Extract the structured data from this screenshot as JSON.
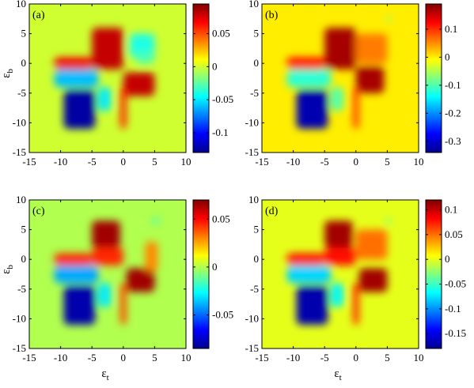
{
  "colors": {
    "jet": [
      "#00008f",
      "#0000ff",
      "#0080ff",
      "#00ffff",
      "#80ff80",
      "#ffff00",
      "#ff8000",
      "#ff0000",
      "#800000"
    ],
    "background": "#f2f200",
    "axis": "#000000"
  },
  "chart_data": [
    {
      "type": "heatmap",
      "panel_label": "(a)",
      "xlabel": "",
      "ylabel": "εb",
      "xlim": [
        -15,
        10
      ],
      "ylim": [
        -15,
        10
      ],
      "xticks": [
        "-15",
        "-10",
        "-5",
        "0",
        "5",
        "10"
      ],
      "yticks": [
        "10",
        "5",
        "0",
        "-5",
        "-10",
        "-15"
      ],
      "clim": [
        -0.13,
        0.095
      ],
      "colorbar_ticks": [
        "0.05",
        "0",
        "-0.05",
        "-0.1"
      ],
      "colorbar_tick_values": [
        0.05,
        0,
        -0.05,
        -0.1
      ],
      "features": [
        {
          "shape": "rect",
          "x": [
            -9.5,
            -4.5
          ],
          "y": [
            -11,
            -4.5
          ],
          "value": -0.125
        },
        {
          "shape": "rect",
          "x": [
            -11,
            -4
          ],
          "y": [
            -4,
            -1
          ],
          "value": -0.06
        },
        {
          "shape": "rect",
          "x": [
            -4,
            -2
          ],
          "y": [
            -8,
            -4
          ],
          "value": -0.05
        },
        {
          "shape": "rect",
          "x": [
            -5,
            0
          ],
          "y": [
            -1,
            6
          ],
          "value": 0.08
        },
        {
          "shape": "rect",
          "x": [
            -11,
            -5
          ],
          "y": [
            -1,
            1
          ],
          "value": 0.07
        },
        {
          "shape": "rect",
          "x": [
            0,
            5
          ],
          "y": [
            -5.5,
            -1.5
          ],
          "value": 0.08
        },
        {
          "shape": "rect",
          "x": [
            -0.5,
            0.5
          ],
          "y": [
            -11,
            -4
          ],
          "value": 0.06
        },
        {
          "shape": "rect",
          "x": [
            1,
            5
          ],
          "y": [
            1,
            5
          ],
          "value": -0.04
        },
        {
          "shape": "rect",
          "x": [
            2,
            5
          ],
          "y": [
            0,
            2
          ],
          "value": -0.03
        }
      ]
    },
    {
      "type": "heatmap",
      "panel_label": "(b)",
      "xlabel": "",
      "ylabel": "",
      "xlim": [
        -15,
        10
      ],
      "ylim": [
        -15,
        10
      ],
      "xticks": [
        "-15",
        "-10",
        "-5",
        "0",
        "5",
        "10"
      ],
      "yticks": [
        "10",
        "5",
        "0",
        "-5",
        "-10",
        "-15"
      ],
      "clim": [
        -0.34,
        0.19
      ],
      "colorbar_ticks": [
        "0.1",
        "0",
        "-0.1",
        "-0.2",
        "-0.3"
      ],
      "colorbar_tick_values": [
        0.1,
        0,
        -0.1,
        -0.2,
        -0.3
      ],
      "features": [
        {
          "shape": "rect",
          "x": [
            -9.5,
            -4.5
          ],
          "y": [
            -11,
            -4.5
          ],
          "value": -0.32
        },
        {
          "shape": "rect",
          "x": [
            -11,
            -4
          ],
          "y": [
            -4,
            -1
          ],
          "value": -0.12
        },
        {
          "shape": "rect",
          "x": [
            -4,
            -2
          ],
          "y": [
            -8,
            -4
          ],
          "value": -0.1
        },
        {
          "shape": "rect",
          "x": [
            -5,
            0
          ],
          "y": [
            -1,
            6
          ],
          "value": 0.17
        },
        {
          "shape": "rect",
          "x": [
            -11,
            -5
          ],
          "y": [
            -1,
            1
          ],
          "value": 0.12
        },
        {
          "shape": "rect",
          "x": [
            0,
            4.5
          ],
          "y": [
            -5,
            -0.5
          ],
          "value": 0.17
        },
        {
          "shape": "rect",
          "x": [
            -0.5,
            0.5
          ],
          "y": [
            -11,
            -4
          ],
          "value": 0.09
        },
        {
          "shape": "rect",
          "x": [
            0,
            5
          ],
          "y": [
            0,
            5
          ],
          "value": 0.06
        },
        {
          "shape": "rect",
          "x": [
            4.7,
            5.7
          ],
          "y": [
            7,
            8
          ],
          "value": -0.05
        }
      ]
    },
    {
      "type": "heatmap",
      "panel_label": "(c)",
      "xlabel": "εt",
      "ylabel": "εb",
      "xlim": [
        -15,
        10
      ],
      "ylim": [
        -15,
        10
      ],
      "xticks": [
        "-15",
        "-10",
        "-5",
        "0",
        "5",
        "10"
      ],
      "yticks": [
        "10",
        "5",
        "0",
        "-5",
        "-10",
        "-15"
      ],
      "clim": [
        -0.085,
        0.07
      ],
      "colorbar_ticks": [
        "0.05",
        "0",
        "-0.05"
      ],
      "colorbar_tick_values": [
        0.05,
        0,
        -0.05
      ],
      "features": [
        {
          "shape": "rect",
          "x": [
            -9.5,
            -4.5
          ],
          "y": [
            -11,
            -4.5
          ],
          "value": -0.08
        },
        {
          "shape": "rect",
          "x": [
            -11,
            -4
          ],
          "y": [
            -4,
            -1
          ],
          "value": -0.04
        },
        {
          "shape": "rect",
          "x": [
            -4,
            -2
          ],
          "y": [
            -8,
            -4
          ],
          "value": -0.03
        },
        {
          "shape": "rect",
          "x": [
            -5,
            -0.5
          ],
          "y": [
            2,
            6.5
          ],
          "value": 0.065
        },
        {
          "shape": "rect",
          "x": [
            -5,
            0
          ],
          "y": [
            -1,
            2
          ],
          "value": 0.045
        },
        {
          "shape": "rect",
          "x": [
            -11,
            -5
          ],
          "y": [
            -1,
            1
          ],
          "value": 0.045
        },
        {
          "shape": "rect",
          "x": [
            0.5,
            5
          ],
          "y": [
            -5.5,
            -1.5
          ],
          "value": 0.065
        },
        {
          "shape": "rect",
          "x": [
            -0.5,
            0.5
          ],
          "y": [
            -11,
            -4
          ],
          "value": 0.04
        },
        {
          "shape": "rect",
          "x": [
            3.5,
            5.5
          ],
          "y": [
            -2,
            3
          ],
          "value": 0.03
        },
        {
          "shape": "rect",
          "x": [
            4.7,
            5.7
          ],
          "y": [
            6,
            7
          ],
          "value": -0.02
        }
      ]
    },
    {
      "type": "heatmap",
      "panel_label": "(d)",
      "xlabel": "εt",
      "ylabel": "",
      "xlim": [
        -15,
        10
      ],
      "ylim": [
        -15,
        10
      ],
      "xticks": [
        "-15",
        "-10",
        "-5",
        "0",
        "5",
        "10"
      ],
      "yticks": [
        "10",
        "5",
        "0",
        "-5",
        "-10",
        "-15"
      ],
      "clim": [
        -0.18,
        0.12
      ],
      "colorbar_ticks": [
        "0.1",
        "0.05",
        "0",
        "-0.05",
        "-0.1",
        "-0.15"
      ],
      "colorbar_tick_values": [
        0.1,
        0.05,
        0,
        -0.05,
        -0.1,
        -0.15
      ],
      "features": [
        {
          "shape": "rect",
          "x": [
            -9.5,
            -4.5
          ],
          "y": [
            -11,
            -4.5
          ],
          "value": -0.17
        },
        {
          "shape": "rect",
          "x": [
            -11,
            -4
          ],
          "y": [
            -4,
            -1
          ],
          "value": -0.08
        },
        {
          "shape": "rect",
          "x": [
            -4,
            -2
          ],
          "y": [
            -8,
            -4
          ],
          "value": -0.07
        },
        {
          "shape": "rect",
          "x": [
            -5,
            -0.5
          ],
          "y": [
            2,
            6.5
          ],
          "value": 0.11
        },
        {
          "shape": "rect",
          "x": [
            -5,
            0
          ],
          "y": [
            -1,
            2
          ],
          "value": 0.08
        },
        {
          "shape": "rect",
          "x": [
            -11,
            -5
          ],
          "y": [
            -1,
            1
          ],
          "value": 0.08
        },
        {
          "shape": "rect",
          "x": [
            0.5,
            5
          ],
          "y": [
            -5.5,
            -1.5
          ],
          "value": 0.11
        },
        {
          "shape": "rect",
          "x": [
            -0.5,
            0.5
          ],
          "y": [
            -11,
            -4
          ],
          "value": 0.07
        },
        {
          "shape": "rect",
          "x": [
            0,
            5
          ],
          "y": [
            0,
            5
          ],
          "value": 0.05
        },
        {
          "shape": "rect",
          "x": [
            4.7,
            5.7
          ],
          "y": [
            6,
            7
          ],
          "value": -0.03
        }
      ]
    }
  ]
}
